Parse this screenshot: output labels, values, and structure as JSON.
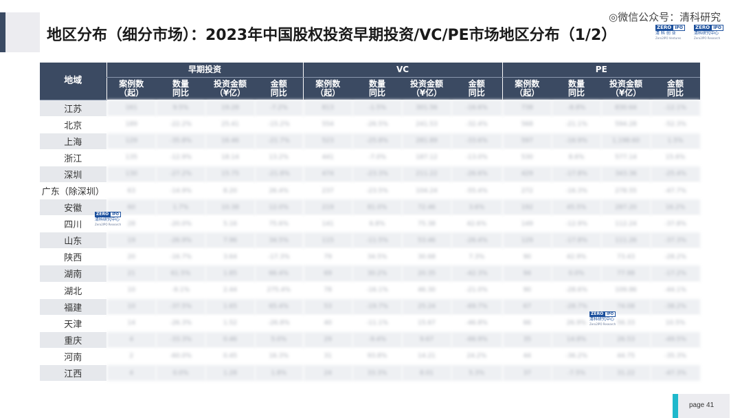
{
  "title": "地区分布（细分市场）：2023年中国股权投资早期投资/VC/PE市场地区分布（1/2）",
  "wechat_label": "◎微信公众号：清科研究",
  "logos": [
    {
      "top": "ZERO",
      "icon": "IPO",
      "cn": "清 科 创 业",
      "en": "Zero2IPO Ventures"
    },
    {
      "top": "ZERO",
      "icon": "IPO",
      "cn": "清科研究中心",
      "en": "Zero2IPO Research"
    }
  ],
  "watermark": {
    "top": "ZERO",
    "icon": "IPO",
    "cn": "清科研究中心",
    "en": "Zero2IPO Research"
  },
  "table": {
    "region_header": "地域",
    "groups": [
      "早期投资",
      "VC",
      "PE"
    ],
    "sub_headers": [
      "案例数\n（起）",
      "数量\n同比",
      "投资金额\n（¥亿）",
      "金额\n同比"
    ],
    "rows": [
      {
        "region": "江苏",
        "values": [
          "161",
          "9.5%",
          "19.28",
          "-7.2%",
          "813",
          "-1.5%",
          "301.56",
          "-16.6%",
          "738",
          "-8.8%",
          "830.64",
          "-12.1%"
        ]
      },
      {
        "region": "北京",
        "values": [
          "189",
          "-22.2%",
          "25.41",
          "-15.2%",
          "554",
          "-26.5%",
          "241.53",
          "-32.4%",
          "568",
          "-21.1%",
          "594.28",
          "-52.3%"
        ]
      },
      {
        "region": "上海",
        "values": [
          "129",
          "-35.8%",
          "16.46",
          "-21.7%",
          "523",
          "-25.8%",
          "281.89",
          "-33.6%",
          "597",
          "-16.9%",
          "1,198.60",
          "1.5%"
        ]
      },
      {
        "region": "浙江",
        "values": [
          "135",
          "-12.9%",
          "18.14",
          "13.2%",
          "441",
          "-7.0%",
          "187.12",
          "-13.0%",
          "530",
          "8.6%",
          "577.14",
          "15.6%"
        ]
      },
      {
        "region": "深圳",
        "values": [
          "130",
          "-27.2%",
          "15.75",
          "-21.8%",
          "474",
          "-23.3%",
          "211.22",
          "-26.6%",
          "429",
          "-17.8%",
          "343.36",
          "-25.4%"
        ]
      },
      {
        "region": "广东（除深圳）",
        "values": [
          "63",
          "-14.9%",
          "8.20",
          "26.4%",
          "237",
          "-23.5%",
          "104.24",
          "-55.4%",
          "272",
          "-16.3%",
          "278.55",
          "-47.7%"
        ]
      },
      {
        "region": "安徽",
        "values": [
          "60",
          "1.7%",
          "10.38",
          "12.0%",
          "219",
          "81.0%",
          "72.46",
          "3.6%",
          "192",
          "45.5%",
          "287.20",
          "16.2%"
        ]
      },
      {
        "region": "四川",
        "values": [
          "28",
          "-20.0%",
          "5.16",
          "75.6%",
          "141",
          "6.8%",
          "75.38",
          "42.6%",
          "149",
          "-12.9%",
          "112.24",
          "-37.8%"
        ]
      },
      {
        "region": "山东",
        "values": [
          "19",
          "-26.9%",
          "7.96",
          "34.5%",
          "115",
          "-11.5%",
          "53.46",
          "-26.4%",
          "129",
          "-17.8%",
          "111.26",
          "-37.3%"
        ]
      },
      {
        "region": "陕西",
        "values": [
          "20",
          "-16.7%",
          "3.64",
          "-17.3%",
          "79",
          "34.5%",
          "30.68",
          "7.3%",
          "90",
          "42.9%",
          "73.43",
          "-28.2%"
        ]
      },
      {
        "region": "湖南",
        "values": [
          "21",
          "61.5%",
          "1.85",
          "66.4%",
          "69",
          "30.2%",
          "20.35",
          "-42.3%",
          "94",
          "0.0%",
          "77.98",
          "-17.2%"
        ]
      },
      {
        "region": "湖北",
        "values": [
          "10",
          "-9.1%",
          "2.44",
          "275.4%",
          "78",
          "-16.1%",
          "46.30",
          "-21.0%",
          "90",
          "-28.6%",
          "109.86",
          "-44.1%"
        ]
      },
      {
        "region": "福建",
        "values": [
          "10",
          "-37.5%",
          "1.65",
          "65.4%",
          "53",
          "-19.7%",
          "25.24",
          "-69.7%",
          "67",
          "-28.7%",
          "74.08",
          "-38.2%"
        ]
      },
      {
        "region": "天津",
        "values": [
          "14",
          "-26.3%",
          "1.52",
          "-26.8%",
          "40",
          "-11.1%",
          "15.67",
          "-46.8%",
          "66",
          "26.9%",
          "56.33",
          "10.5%"
        ]
      },
      {
        "region": "重庆",
        "values": [
          "4",
          "-33.3%",
          "0.46",
          "5.0%",
          "29",
          "-9.4%",
          "9.67",
          "-66.9%",
          "35",
          "14.8%",
          "26.53",
          "-49.5%"
        ]
      },
      {
        "region": "河南",
        "values": [
          "2",
          "-60.0%",
          "0.45",
          "16.3%",
          "31",
          "93.8%",
          "14.21",
          "24.2%",
          "44",
          "-36.2%",
          "44.75",
          "-35.3%"
        ]
      },
      {
        "region": "江西",
        "values": [
          "4",
          "0.0%",
          "1.28",
          "1.8%",
          "24",
          "33.3%",
          "8.01",
          "5.3%",
          "37",
          "-7.5%",
          "31.22",
          "-47.3%"
        ]
      }
    ]
  },
  "page_label": "page  41",
  "colors": {
    "header": "#3b4a62",
    "accent": "#3a4a63",
    "page_accent": "#1fb8cc",
    "stripe": "#eef0f3"
  }
}
